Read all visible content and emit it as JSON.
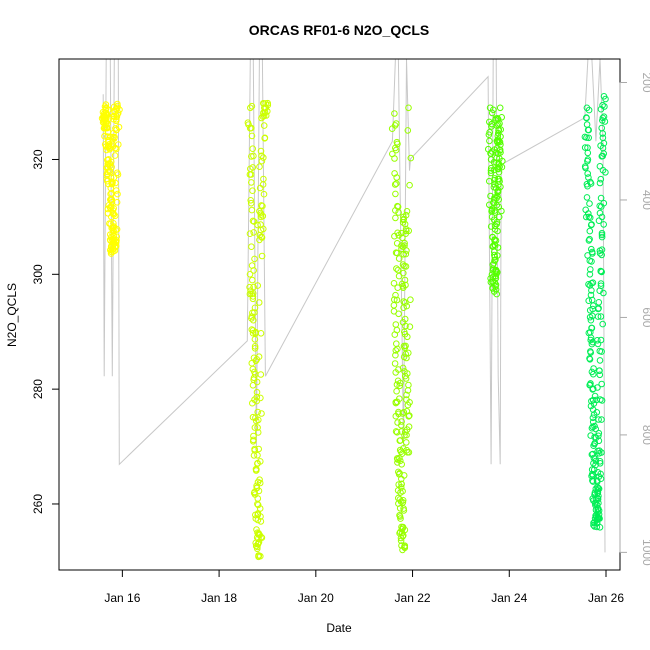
{
  "chart_data": {
    "type": "scatter",
    "title": "ORCAS RF01-6 N2O_QCLS",
    "xlabel": "Date",
    "ylabel": "N2O_QCLS",
    "x_axis": {
      "kind": "date",
      "range": [
        "2016-01-15",
        "2016-01-26"
      ],
      "ticks": [
        {
          "value": "2016-01-16",
          "label": "Jan 16"
        },
        {
          "value": "2016-01-18",
          "label": "Jan 18"
        },
        {
          "value": "2016-01-20",
          "label": "Jan 20"
        },
        {
          "value": "2016-01-22",
          "label": "Jan 22"
        },
        {
          "value": "2016-01-24",
          "label": "Jan 24"
        },
        {
          "value": "2016-01-26",
          "label": "Jan 26"
        }
      ]
    },
    "y_left": {
      "ylim": [
        248.5,
        337.5
      ],
      "ticks": [
        260,
        280,
        300,
        320
      ],
      "tick_labels": [
        "260",
        "280",
        "300",
        "320"
      ]
    },
    "y_right": {
      "ylim": [
        1030,
        160
      ],
      "reversed": true,
      "color": "#a9a9a9",
      "ticks": [
        200,
        400,
        600,
        800,
        1000
      ],
      "tick_labels": [
        "200",
        "400",
        "600",
        "800",
        "1000"
      ]
    },
    "grid": false,
    "marker": "open-circle",
    "series": [
      {
        "color": "#ffff00",
        "flight_window": [
          "2016-01-15T14:30",
          "2016-01-15T22:00"
        ],
        "points": [
          [
            "2016-01-15T15:00",
            328
          ],
          [
            "2016-01-15T15:30",
            326
          ],
          [
            "2016-01-15T16:00",
            329
          ],
          [
            "2016-01-15T16:30",
            324
          ],
          [
            "2016-01-15T17:00",
            320
          ],
          [
            "2016-01-15T17:30",
            318
          ],
          [
            "2016-01-15T18:00",
            313
          ],
          [
            "2016-01-15T18:30",
            310
          ],
          [
            "2016-01-15T19:00",
            306
          ],
          [
            "2016-01-15T19:30",
            304
          ],
          [
            "2016-01-15T20:00",
            306
          ],
          [
            "2016-01-15T20:30",
            322
          ],
          [
            "2016-01-15T21:00",
            327
          ],
          [
            "2016-01-15T21:30",
            329
          ]
        ]
      },
      {
        "color": "#ccff00",
        "flight_window": [
          "2016-01-18T15:00",
          "2016-01-18T23:30"
        ],
        "points": [
          [
            "2016-01-18T15:30",
            329
          ],
          [
            "2016-01-18T16:00",
            316
          ],
          [
            "2016-01-18T16:30",
            299
          ],
          [
            "2016-01-18T17:00",
            292
          ],
          [
            "2016-01-18T17:30",
            283
          ],
          [
            "2016-01-18T18:00",
            275
          ],
          [
            "2016-01-18T18:30",
            266
          ],
          [
            "2016-01-18T19:00",
            260
          ],
          [
            "2016-01-18T19:30",
            254
          ],
          [
            "2016-01-18T19:45",
            251
          ],
          [
            "2016-01-18T20:00",
            306
          ],
          [
            "2016-01-18T21:00",
            312
          ],
          [
            "2016-01-18T22:00",
            328
          ],
          [
            "2016-01-18T23:00",
            329
          ]
        ]
      },
      {
        "color": "#99ff00",
        "flight_window": [
          "2016-01-21T14:30",
          "2016-01-21T23:00"
        ],
        "points": [
          [
            "2016-01-21T15:00",
            328
          ],
          [
            "2016-01-21T15:30",
            314
          ],
          [
            "2016-01-21T16:00",
            301
          ],
          [
            "2016-01-21T16:30",
            287
          ],
          [
            "2016-01-21T17:00",
            276
          ],
          [
            "2016-01-21T17:30",
            268
          ],
          [
            "2016-01-21T18:00",
            262
          ],
          [
            "2016-01-21T18:30",
            256
          ],
          [
            "2016-01-21T19:00",
            252
          ],
          [
            "2016-01-21T19:30",
            310
          ],
          [
            "2016-01-21T20:00",
            305
          ],
          [
            "2016-01-21T20:30",
            291
          ],
          [
            "2016-01-21T21:00",
            279
          ],
          [
            "2016-01-21T21:30",
            269
          ],
          [
            "2016-01-21T22:00",
            329
          ]
        ]
      },
      {
        "color": "#55ff00",
        "flight_window": [
          "2016-01-23T14:00",
          "2016-01-23T20:00"
        ],
        "points": [
          [
            "2016-01-23T14:30",
            329
          ],
          [
            "2016-01-23T15:00",
            320
          ],
          [
            "2016-01-23T15:30",
            310
          ],
          [
            "2016-01-23T16:00",
            301
          ],
          [
            "2016-01-23T16:30",
            297
          ],
          [
            "2016-01-23T17:00",
            305
          ],
          [
            "2016-01-23T17:30",
            315
          ],
          [
            "2016-01-23T18:00",
            322
          ],
          [
            "2016-01-23T18:30",
            327
          ],
          [
            "2016-01-23T19:00",
            310
          ],
          [
            "2016-01-23T19:30",
            329
          ]
        ]
      },
      {
        "color": "#00ee55",
        "flight_window": [
          "2016-01-25T14:00",
          "2016-01-25T23:30"
        ],
        "points": [
          [
            "2016-01-25T14:30",
            329
          ],
          [
            "2016-01-25T15:00",
            320
          ],
          [
            "2016-01-25T15:30",
            310
          ],
          [
            "2016-01-25T16:00",
            300
          ],
          [
            "2016-01-25T16:30",
            292
          ],
          [
            "2016-01-25T17:00",
            283
          ],
          [
            "2016-01-25T17:30",
            275
          ],
          [
            "2016-01-25T18:00",
            268
          ],
          [
            "2016-01-25T18:30",
            262
          ],
          [
            "2016-01-25T19:00",
            258
          ],
          [
            "2016-01-25T19:30",
            256
          ],
          [
            "2016-01-25T20:00",
            262
          ],
          [
            "2016-01-25T20:30",
            271
          ],
          [
            "2016-01-25T21:00",
            285
          ],
          [
            "2016-01-25T21:30",
            298
          ],
          [
            "2016-01-25T22:00",
            310
          ],
          [
            "2016-01-25T22:30",
            322
          ],
          [
            "2016-01-25T23:00",
            331
          ]
        ]
      }
    ],
    "altitude_trace": {
      "color": "#c8c8c8",
      "axis": "right",
      "points": [
        [
          "2016-01-15T14:30",
          220
        ],
        [
          "2016-01-15T15:00",
          700
        ],
        [
          "2016-01-15T16:00",
          160
        ],
        [
          "2016-01-15T18:00",
          160
        ],
        [
          "2016-01-15T19:00",
          700
        ],
        [
          "2016-01-15T20:00",
          160
        ],
        [
          "2016-01-15T22:00",
          160
        ],
        [
          "2016-01-15T22:30",
          850
        ],
        [
          "2016-01-18T14:00",
          640
        ],
        [
          "2016-01-18T15:30",
          160
        ],
        [
          "2016-01-18T17:00",
          160
        ],
        [
          "2016-01-18T18:30",
          820
        ],
        [
          "2016-01-18T20:00",
          160
        ],
        [
          "2016-01-18T21:30",
          160
        ],
        [
          "2016-01-18T23:00",
          700
        ],
        [
          "2016-01-21T14:00",
          300
        ],
        [
          "2016-01-21T15:30",
          160
        ],
        [
          "2016-01-21T17:00",
          160
        ],
        [
          "2016-01-21T19:30",
          820
        ],
        [
          "2016-01-21T21:00",
          160
        ],
        [
          "2016-01-21T22:30",
          350
        ],
        [
          "2016-01-21T23:00",
          330
        ],
        [
          "2016-01-23T13:30",
          190
        ],
        [
          "2016-01-23T15:00",
          850
        ],
        [
          "2016-01-23T16:00",
          160
        ],
        [
          "2016-01-23T17:30",
          160
        ],
        [
          "2016-01-23T18:30",
          700
        ],
        [
          "2016-01-23T19:30",
          850
        ],
        [
          "2016-01-23T20:00",
          340
        ],
        [
          "2016-01-25T13:30",
          260
        ],
        [
          "2016-01-25T15:00",
          160
        ],
        [
          "2016-01-25T17:00",
          160
        ],
        [
          "2016-01-25T19:00",
          300
        ],
        [
          "2016-01-25T21:00",
          160
        ],
        [
          "2016-01-25T22:30",
          300
        ],
        [
          "2016-01-25T23:30",
          1000
        ]
      ]
    }
  }
}
